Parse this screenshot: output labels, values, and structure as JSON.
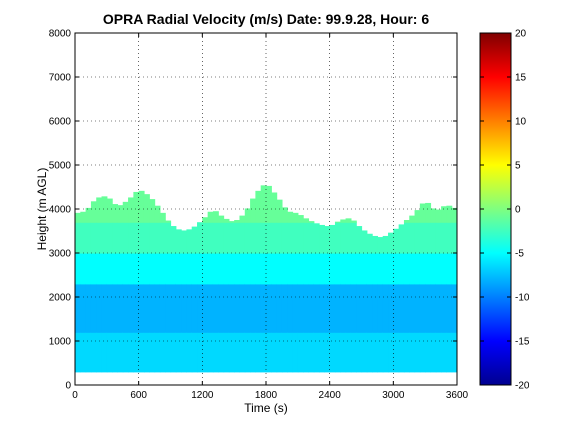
{
  "chart_data": {
    "type": "heatmap",
    "title": "OPRA Radial Velocity (m/s)  Date: 99.9.28, Hour: 6",
    "xlabel": "Time (s)",
    "ylabel": "Height (m AGL)",
    "xlim": [
      0,
      3600
    ],
    "ylim": [
      0,
      8000
    ],
    "xticks": [
      0,
      600,
      1200,
      1800,
      2400,
      3000,
      3600
    ],
    "yticks": [
      0,
      1000,
      2000,
      3000,
      4000,
      5000,
      6000,
      7000,
      8000
    ],
    "grid": true,
    "colormap": "jet",
    "colorbar": {
      "min": -20,
      "max": 20,
      "ticks": [
        20,
        15,
        10,
        5,
        0,
        -5,
        -10,
        -15,
        -20
      ]
    },
    "data_bottom_height_m": 300,
    "echo_top_profile": [
      {
        "t": 0,
        "h": 3900
      },
      {
        "t": 100,
        "h": 3950
      },
      {
        "t": 200,
        "h": 4250
      },
      {
        "t": 300,
        "h": 4300
      },
      {
        "t": 400,
        "h": 4050
      },
      {
        "t": 500,
        "h": 4200
      },
      {
        "t": 600,
        "h": 4450
      },
      {
        "t": 700,
        "h": 4300
      },
      {
        "t": 800,
        "h": 4000
      },
      {
        "t": 900,
        "h": 3650
      },
      {
        "t": 1000,
        "h": 3500
      },
      {
        "t": 1100,
        "h": 3550
      },
      {
        "t": 1200,
        "h": 3750
      },
      {
        "t": 1300,
        "h": 4000
      },
      {
        "t": 1400,
        "h": 3800
      },
      {
        "t": 1500,
        "h": 3700
      },
      {
        "t": 1600,
        "h": 3900
      },
      {
        "t": 1700,
        "h": 4350
      },
      {
        "t": 1800,
        "h": 4600
      },
      {
        "t": 1900,
        "h": 4300
      },
      {
        "t": 2000,
        "h": 3950
      },
      {
        "t": 2100,
        "h": 3900
      },
      {
        "t": 2200,
        "h": 3750
      },
      {
        "t": 2300,
        "h": 3650
      },
      {
        "t": 2400,
        "h": 3600
      },
      {
        "t": 2500,
        "h": 3750
      },
      {
        "t": 2600,
        "h": 3800
      },
      {
        "t": 2700,
        "h": 3550
      },
      {
        "t": 2800,
        "h": 3400
      },
      {
        "t": 2900,
        "h": 3350
      },
      {
        "t": 3000,
        "h": 3500
      },
      {
        "t": 3100,
        "h": 3700
      },
      {
        "t": 3200,
        "h": 3900
      },
      {
        "t": 3300,
        "h": 4200
      },
      {
        "t": 3400,
        "h": 3950
      },
      {
        "t": 3500,
        "h": 4100
      },
      {
        "t": 3600,
        "h": 4000
      }
    ],
    "velocity_layers": [
      {
        "h_from": 300,
        "h_to": 1200,
        "velocity": -6.5
      },
      {
        "h_from": 1200,
        "h_to": 2300,
        "velocity": -8
      },
      {
        "h_from": 2300,
        "h_to": 3000,
        "velocity": -5
      },
      {
        "h_from": 3000,
        "h_to": 3700,
        "velocity": -2.5
      },
      {
        "h_from": 3700,
        "h_to": 4800,
        "velocity": -1
      }
    ]
  }
}
